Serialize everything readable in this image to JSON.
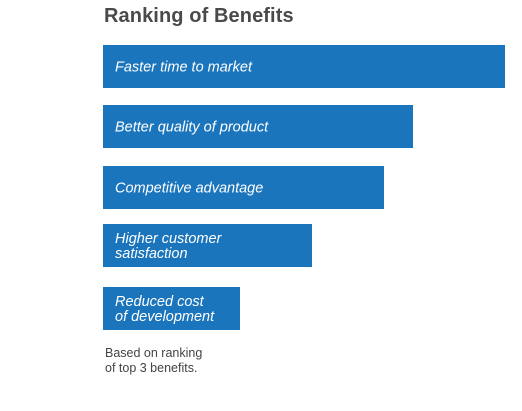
{
  "chart_data": {
    "type": "bar",
    "orientation": "horizontal",
    "title": "Ranking of Benefits",
    "categories": [
      [
        "Faster time to market"
      ],
      [
        "Better quality of product"
      ],
      [
        "Competitive advantage"
      ],
      [
        "Higher customer",
        "satisfaction"
      ],
      [
        "Reduced cost",
        "of development"
      ]
    ],
    "values": [
      100,
      77,
      70,
      52,
      34
    ],
    "bar_color": "#1b75bc",
    "xlim": [
      0,
      100
    ],
    "axis_labels_shown": false,
    "grid": false,
    "legend": "none",
    "note": [
      "Based on ranking",
      "of top 3 benefits."
    ]
  }
}
